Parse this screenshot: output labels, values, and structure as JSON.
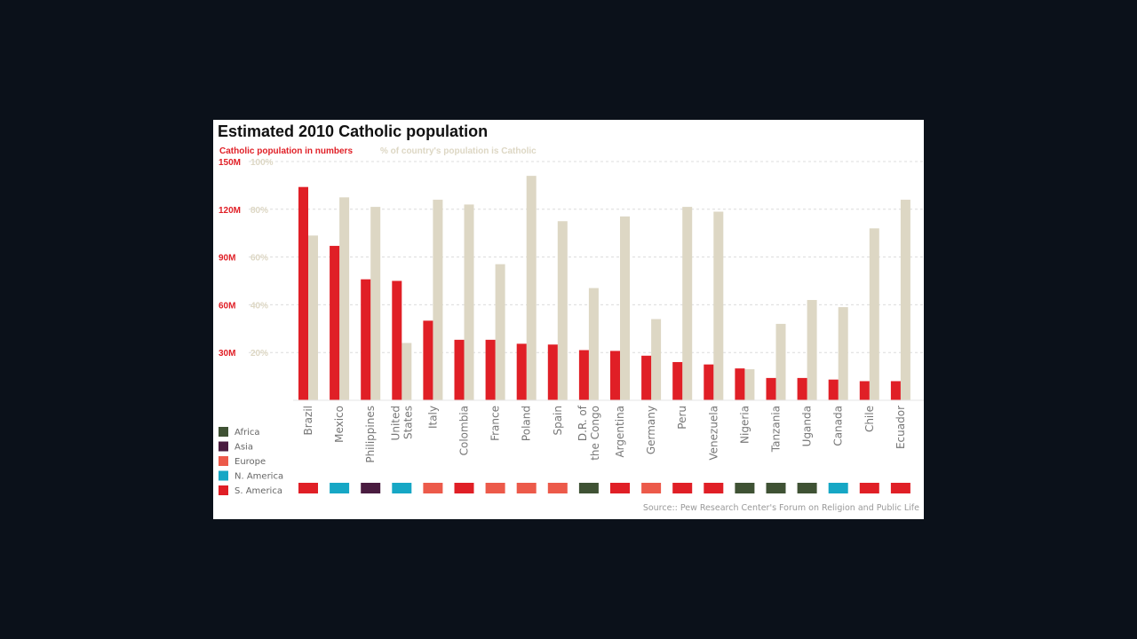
{
  "chart_data": {
    "type": "bar",
    "title": "Estimated 2010 Catholic population",
    "legend_series": [
      {
        "name": "Catholic population in numbers",
        "color": "#e01f26"
      },
      {
        "name": "% of country's population is Catholic",
        "color": "#ddd7c4"
      }
    ],
    "y_left": {
      "ticks": [
        "30M",
        "60M",
        "90M",
        "120M",
        "150M"
      ],
      "tick_values": [
        30,
        60,
        90,
        120,
        150
      ],
      "ylim": [
        0,
        150
      ],
      "unit": "millions",
      "color": "#e01f26"
    },
    "y_right": {
      "ticks": [
        "20%",
        "40%",
        "60%",
        "80%",
        "100%"
      ],
      "tick_values": [
        20,
        40,
        60,
        80,
        100
      ],
      "ylim": [
        0,
        100
      ],
      "unit": "percent",
      "color": "#ddd7c4"
    },
    "grid": true,
    "categories": [
      [
        "Brazil"
      ],
      [
        "Mexico"
      ],
      [
        "Philippines"
      ],
      [
        "United",
        "States"
      ],
      [
        "Italy"
      ],
      [
        "Colombia"
      ],
      [
        "France"
      ],
      [
        "Poland"
      ],
      [
        "Spain"
      ],
      [
        "D.R. of",
        "the Congo"
      ],
      [
        "Argentina"
      ],
      [
        "Germany"
      ],
      [
        "Peru"
      ],
      [
        "Venezuela"
      ],
      [
        "Nigeria"
      ],
      [
        "Tanzania"
      ],
      [
        "Uganda"
      ],
      [
        "Canada"
      ],
      [
        "Chile"
      ],
      [
        "Ecuador"
      ]
    ],
    "series": [
      {
        "values": [
          134,
          97,
          76,
          75,
          50,
          38,
          38,
          35.5,
          35,
          31.5,
          31,
          28,
          24,
          22.5,
          20,
          14,
          14,
          13,
          12,
          12
        ]
      },
      {
        "values": [
          69,
          85,
          81,
          24,
          84,
          82,
          57,
          94,
          75,
          47,
          77,
          34,
          81,
          79,
          13,
          32,
          42,
          39,
          72,
          84
        ]
      }
    ],
    "regions": [
      {
        "name": "Africa",
        "color": "#3f5234"
      },
      {
        "name": "Asia",
        "color": "#4a1c40"
      },
      {
        "name": "Europe",
        "color": "#ec5a4a"
      },
      {
        "name": "N. America",
        "color": "#16a7c5"
      },
      {
        "name": "S. America",
        "color": "#e01f26"
      }
    ],
    "country_regions": [
      4,
      3,
      1,
      3,
      2,
      4,
      2,
      2,
      2,
      0,
      4,
      2,
      4,
      4,
      0,
      0,
      0,
      3,
      4,
      4
    ],
    "source": "Source:: Pew Research Center's Forum on Religion and Public Life"
  }
}
